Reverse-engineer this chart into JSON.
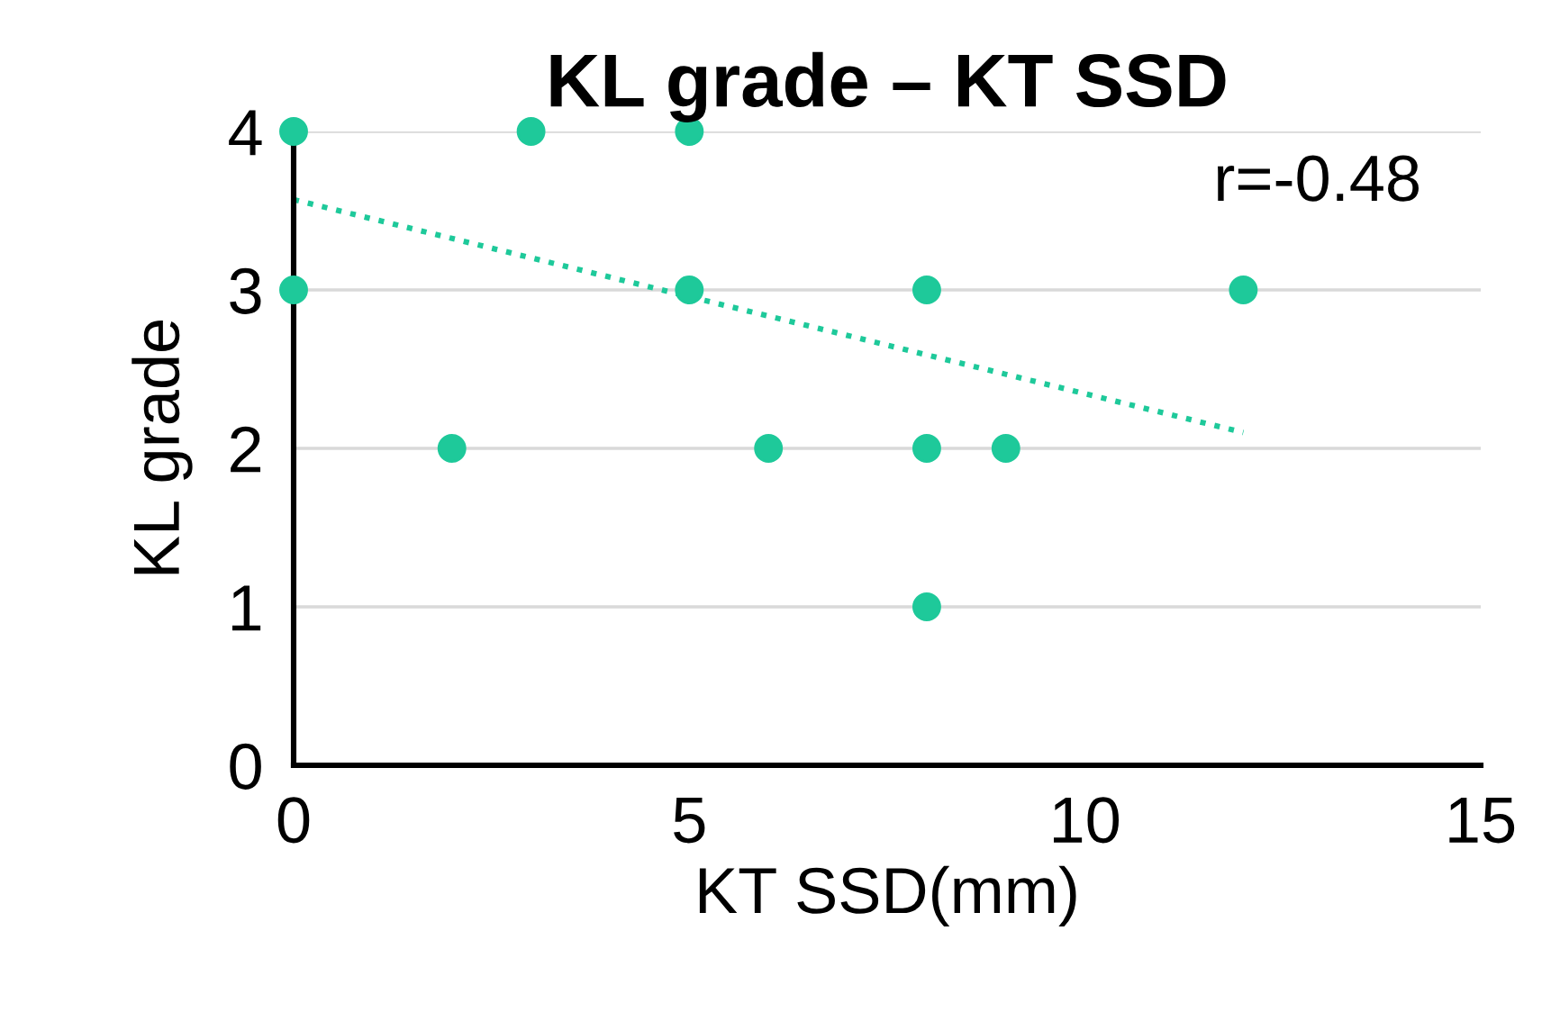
{
  "chart_data": {
    "type": "scatter",
    "title": "KL grade – KT SSD",
    "xlabel": "KT SSD(mm)",
    "ylabel": "KL grade",
    "xlim": [
      0,
      15
    ],
    "xticks": [
      0,
      5,
      10,
      15
    ],
    "ylim": [
      0,
      4
    ],
    "yticks": [
      0,
      1,
      2,
      3,
      4
    ],
    "grid": "y",
    "legend": false,
    "annotations": [
      "r=-0.48"
    ],
    "series": [
      {
        "marker": "circle",
        "color": "#1ec99a",
        "x": [
          0,
          3,
          5,
          0,
          5,
          8,
          12,
          2,
          6,
          8,
          9,
          8
        ],
        "values": [
          4,
          4,
          4,
          3,
          3,
          3,
          3,
          2,
          2,
          2,
          2,
          1
        ]
      },
      {
        "type": "line",
        "marker": "none",
        "color": "#1ec99a",
        "line_style": "dotted",
        "x": [
          0,
          12
        ],
        "values": [
          3.57,
          2.1
        ]
      }
    ]
  }
}
